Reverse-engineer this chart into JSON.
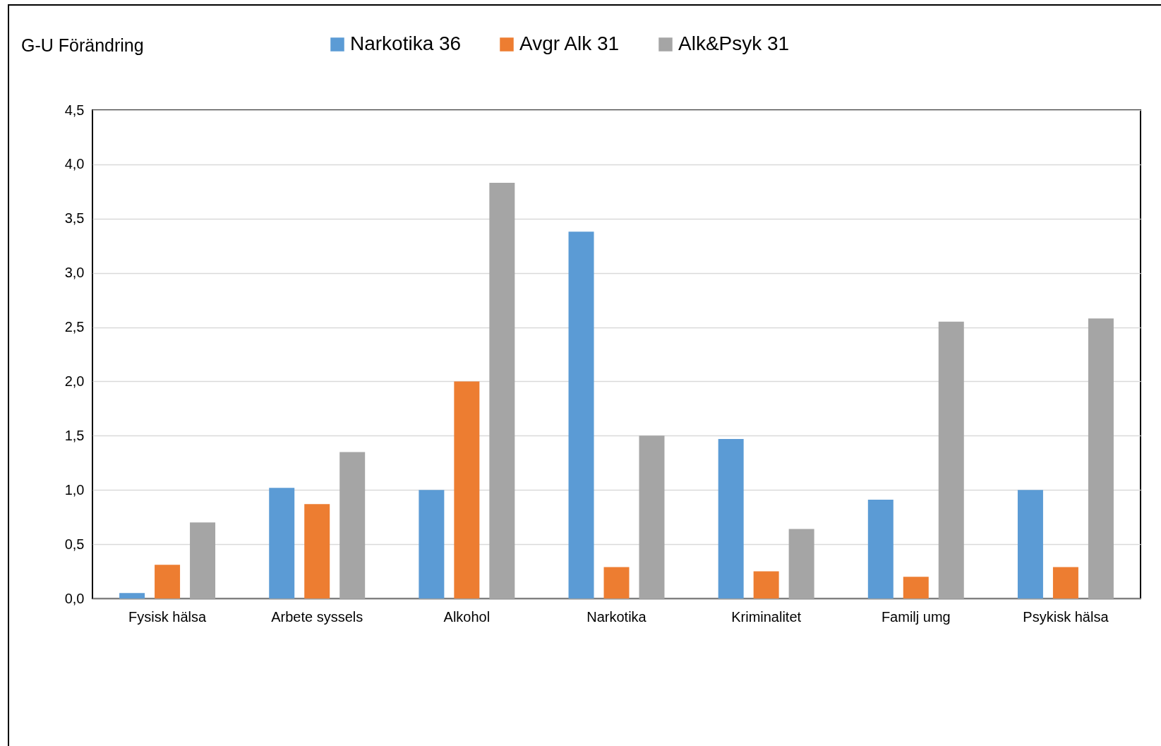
{
  "chart_data": {
    "type": "bar",
    "title": "G-U Förändring",
    "categories": [
      "Fysisk hälsa",
      "Arbete syssels",
      "Alkohol",
      "Narkotika",
      "Kriminalitet",
      "Familj umg",
      "Psykisk hälsa"
    ],
    "series": [
      {
        "name": "Narkotika 36",
        "color": "#5b9bd5",
        "values": [
          0.05,
          1.02,
          1.0,
          3.38,
          1.47,
          0.91,
          1.0
        ]
      },
      {
        "name": "Avgr Alk 31",
        "color": "#ed7d31",
        "values": [
          0.31,
          0.87,
          2.0,
          0.29,
          0.25,
          0.2,
          0.29
        ]
      },
      {
        "name": "Alk&Psyk 31",
        "color": "#a5a5a5",
        "values": [
          0.7,
          1.35,
          3.83,
          1.5,
          0.64,
          2.55,
          2.58
        ]
      }
    ],
    "ylim": [
      0,
      4.5
    ],
    "yticks": [
      {
        "value": 0,
        "label": "0,0"
      },
      {
        "value": 0.5,
        "label": "0,5"
      },
      {
        "value": 1,
        "label": "1,0"
      },
      {
        "value": 1.5,
        "label": "1,5"
      },
      {
        "value": 2,
        "label": "2,0"
      },
      {
        "value": 2.5,
        "label": "2,5"
      },
      {
        "value": 3,
        "label": "3,0"
      },
      {
        "value": 3.5,
        "label": "3,5"
      },
      {
        "value": 4,
        "label": "4,0"
      },
      {
        "value": 4.5,
        "label": "4,5"
      }
    ],
    "grid": "y",
    "legend": "top"
  }
}
